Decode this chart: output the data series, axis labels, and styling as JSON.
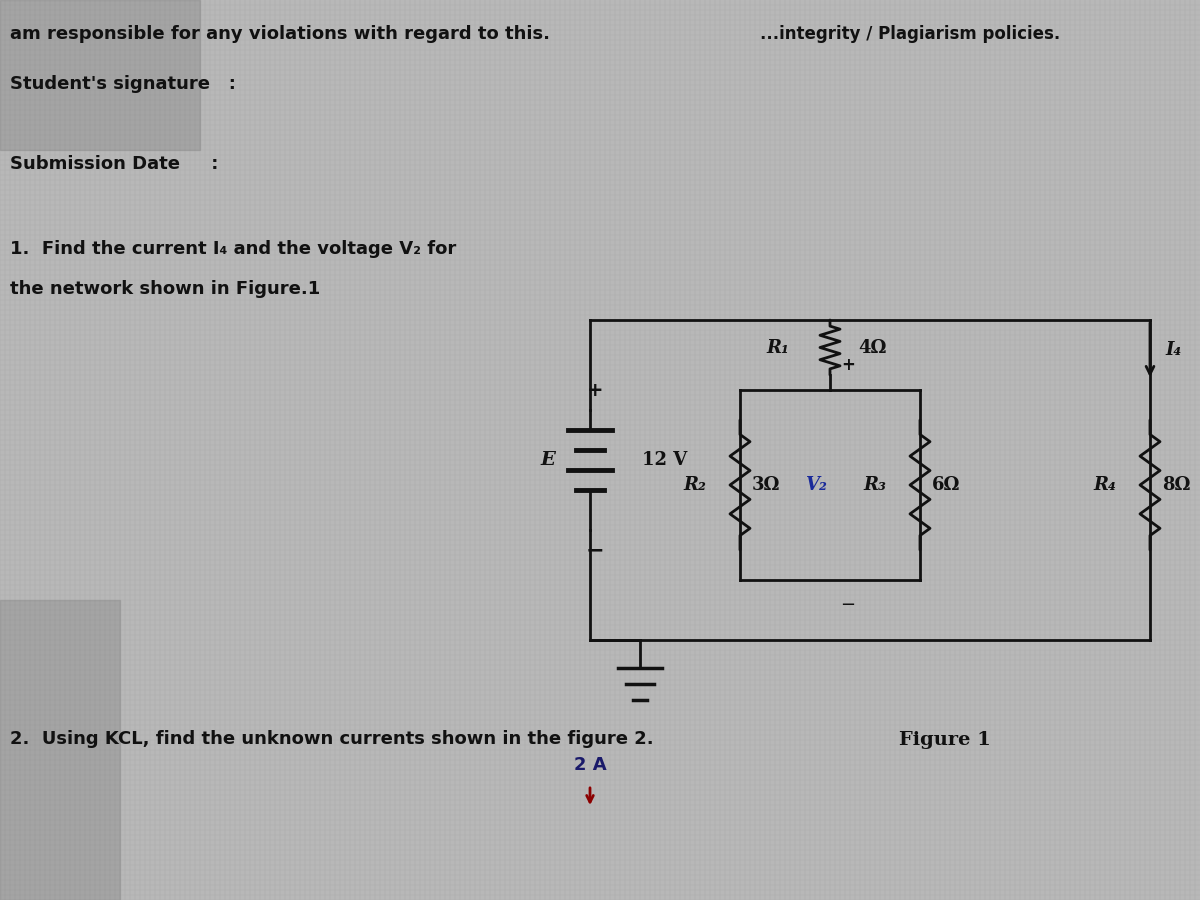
{
  "bg_color": "#b8b8b8",
  "text_color": "#111111",
  "line1": "am responsible for any violations with regard to this.",
  "line2_right": "...integrity / Plagiarism policies.",
  "line3": "Student's signature   :",
  "line4": "Submission Date     :",
  "q1_line1": "1.  Find the current I₄ and the voltage V₂ for",
  "q1_line2": "the network shown in Figure.1",
  "fig_caption": "Figure 1",
  "q2_line1": "2.  Using KCL, find the unknown currents shown in the figure 2.",
  "q2_line2": "2 A",
  "circuit": {
    "E_label": "E",
    "E_value": "12 V",
    "R1_label": "R₁",
    "R1_value": "4Ω",
    "R2_label": "R₂",
    "R2_value": "3Ω",
    "V2_label": "V₂",
    "R3_label": "R₃",
    "R3_value": "6Ω",
    "R4_label": "R₄",
    "R4_value": "8Ω",
    "I4_label": "I₄"
  },
  "grid_alpha": 0.18,
  "grid_color_h": "#606060",
  "grid_color_v": "#808080"
}
